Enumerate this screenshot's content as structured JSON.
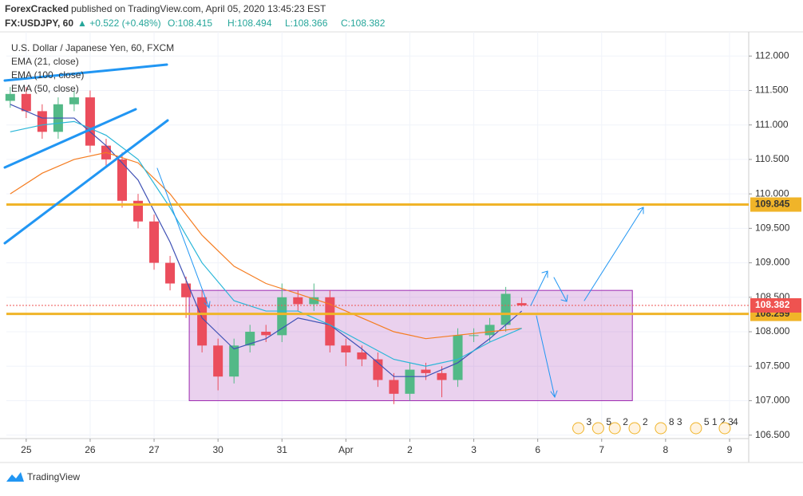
{
  "header": {
    "publisher": "ForexCracked",
    "published": "published on TradingView.com, April 05, 2020 13:45:23 EST",
    "symbol": "FX:USDJPY, 60",
    "change": "▲ +0.522 (+0.48%)",
    "open": "O:108.415",
    "high": "H:108.494",
    "low": "L:108.366",
    "close": "C:108.382"
  },
  "footer": {
    "brand": "TradingView"
  },
  "chart_data": {
    "type": "candlestick",
    "title": "U.S. Dollar / Japanese Yen, 60, FXCM",
    "up_color": "#53b987",
    "down_color": "#eb4d5c",
    "x": [
      -0.25,
      0,
      0.25,
      0.5,
      0.75,
      1,
      1.25,
      1.5,
      1.75,
      2,
      2.25,
      2.5,
      2.75,
      3,
      3.25,
      3.5,
      3.75,
      4,
      4.25,
      4.5,
      4.75,
      5,
      5.25,
      5.5,
      5.75,
      6,
      6.25,
      6.5,
      6.75,
      7,
      7.25,
      7.5,
      7.75
    ],
    "open": [
      111.35,
      111.45,
      111.2,
      110.9,
      111.3,
      111.4,
      110.7,
      110.5,
      109.9,
      109.6,
      109.0,
      108.7,
      108.5,
      107.8,
      107.35,
      107.8,
      108.0,
      107.95,
      108.5,
      108.4,
      108.5,
      107.8,
      107.7,
      107.6,
      107.3,
      107.1,
      107.45,
      107.4,
      107.3,
      107.95,
      107.95,
      108.1,
      108.415
    ],
    "high": [
      111.55,
      111.55,
      111.3,
      111.4,
      111.5,
      111.5,
      110.8,
      110.6,
      110.0,
      109.7,
      109.1,
      108.8,
      108.6,
      107.9,
      107.9,
      108.1,
      108.1,
      108.7,
      108.6,
      108.7,
      108.6,
      107.9,
      107.8,
      107.7,
      107.4,
      107.55,
      107.55,
      107.5,
      108.05,
      108.05,
      108.2,
      108.65,
      108.494
    ],
    "low": [
      111.25,
      111.1,
      110.8,
      110.8,
      111.2,
      110.6,
      110.4,
      109.8,
      109.5,
      108.9,
      108.6,
      108.2,
      107.7,
      107.15,
      107.25,
      107.7,
      107.85,
      107.85,
      108.3,
      108.3,
      107.7,
      107.5,
      107.5,
      107.2,
      106.95,
      107.0,
      107.3,
      107.05,
      107.2,
      107.85,
      107.85,
      108.0,
      108.366
    ],
    "close": [
      111.45,
      111.2,
      110.9,
      111.3,
      111.4,
      110.7,
      110.5,
      109.9,
      109.6,
      109.0,
      108.7,
      108.5,
      107.8,
      107.35,
      107.8,
      108.0,
      107.95,
      108.5,
      108.4,
      108.5,
      107.8,
      107.7,
      107.6,
      107.3,
      107.1,
      107.45,
      107.4,
      107.3,
      107.95,
      107.95,
      108.1,
      108.55,
      108.382
    ],
    "indicators": {
      "x": [
        -0.25,
        0.25,
        0.75,
        1.25,
        1.75,
        2.25,
        2.75,
        3.25,
        3.75,
        4.25,
        4.75,
        5.25,
        5.75,
        6.25,
        6.75,
        7.25,
        7.75
      ],
      "series": [
        {
          "name": "EMA (21, close)",
          "color": "#3f51b5",
          "values": [
            111.3,
            111.1,
            111.1,
            110.7,
            110.2,
            109.3,
            108.2,
            107.75,
            107.9,
            108.2,
            108.1,
            107.75,
            107.35,
            107.35,
            107.55,
            107.9,
            108.3
          ]
        },
        {
          "name": "EMA (100, close)",
          "color": "#f57c20",
          "values": [
            110.0,
            110.3,
            110.5,
            110.6,
            110.45,
            110.0,
            109.4,
            108.95,
            108.7,
            108.55,
            108.4,
            108.2,
            108.0,
            107.9,
            107.95,
            108.0,
            108.05
          ]
        },
        {
          "name": "EMA (50, close)",
          "color": "#29b6d8",
          "values": [
            110.9,
            111.0,
            111.05,
            110.85,
            110.5,
            109.8,
            109.0,
            108.45,
            108.3,
            108.3,
            108.1,
            107.85,
            107.6,
            107.5,
            107.6,
            107.85,
            108.05
          ]
        }
      ]
    },
    "levels": [
      {
        "value": 109.845,
        "color": "#f0b429"
      },
      {
        "value": 108.259,
        "color": "#f0b429"
      }
    ],
    "last_price": 108.382,
    "last_color": "#ef5350",
    "range_box": {
      "x": [
        2.55,
        9.48
      ],
      "y": [
        107.0,
        108.6
      ]
    },
    "events": [
      {
        "x": 8.76,
        "label": "3"
      },
      {
        "x": 9.07,
        "label": "5"
      },
      {
        "x": 9.33,
        "label": "2"
      },
      {
        "x": 9.64,
        "label": "2"
      },
      {
        "x": 10.05,
        "label": "8 3"
      },
      {
        "x": 10.6,
        "label": "5 1 2 3"
      },
      {
        "x": 11.05,
        "label": "4"
      }
    ],
    "xlim": [
      -0.31,
      11.3
    ],
    "ylim": [
      106.45,
      112.35
    ],
    "xticks": [
      {
        "value": 0,
        "label": "25"
      },
      {
        "value": 1,
        "label": "26"
      },
      {
        "value": 2,
        "label": "27"
      },
      {
        "value": 3,
        "label": "30"
      },
      {
        "value": 4,
        "label": "31"
      },
      {
        "value": 5,
        "label": "Apr"
      },
      {
        "value": 6,
        "label": "2"
      },
      {
        "value": 7,
        "label": "3"
      },
      {
        "value": 8,
        "label": "6"
      },
      {
        "value": 9,
        "label": "7"
      },
      {
        "value": 10,
        "label": "8"
      },
      {
        "value": 11,
        "label": "9"
      }
    ],
    "yticks": [
      {
        "value": 106.5,
        "label": "106.500"
      },
      {
        "value": 107,
        "label": "107.000"
      },
      {
        "value": 107.5,
        "label": "107.500"
      },
      {
        "value": 108,
        "label": "108.000"
      },
      {
        "value": 108.5,
        "label": "108.500"
      },
      {
        "value": 109,
        "label": "109.000"
      },
      {
        "value": 109.5,
        "label": "109.500"
      },
      {
        "value": 110,
        "label": "110.000"
      },
      {
        "value": 110.5,
        "label": "110.500"
      },
      {
        "value": 111,
        "label": "111.000"
      },
      {
        "value": 111.5,
        "label": "111.500"
      },
      {
        "value": 112,
        "label": "112.000"
      }
    ],
    "grid": true
  }
}
